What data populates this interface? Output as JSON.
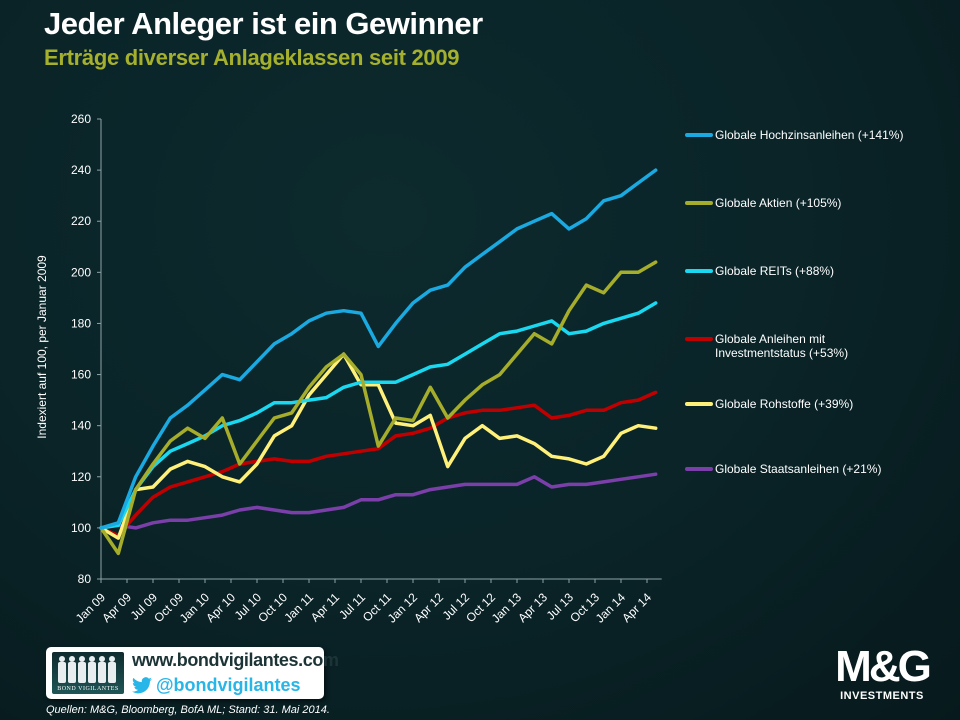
{
  "header": {
    "title": "Jeder Anleger ist ein Gewinner",
    "subtitle": "Erträge diverser Anlageklassen seit 2009"
  },
  "chart_data": {
    "type": "line",
    "ylabel": "Indexiert auf 100, per Januar 2009",
    "ylim": [
      80,
      260
    ],
    "yticks": [
      80,
      100,
      120,
      140,
      160,
      180,
      200,
      220,
      240,
      260
    ],
    "x_unit": "months since Jan 2009",
    "xlim": [
      0,
      64
    ],
    "xticks": [
      {
        "m": 0,
        "label": "Jan 09"
      },
      {
        "m": 3,
        "label": "Apr 09"
      },
      {
        "m": 6,
        "label": "Jul 09"
      },
      {
        "m": 9,
        "label": "Oct 09"
      },
      {
        "m": 12,
        "label": "Jan 10"
      },
      {
        "m": 15,
        "label": "Apr 10"
      },
      {
        "m": 18,
        "label": "Jul 10"
      },
      {
        "m": 21,
        "label": "Oct 10"
      },
      {
        "m": 24,
        "label": "Jan 11"
      },
      {
        "m": 27,
        "label": "Apr 11"
      },
      {
        "m": 30,
        "label": "Jul 11"
      },
      {
        "m": 33,
        "label": "Oct 11"
      },
      {
        "m": 36,
        "label": "Jan 12"
      },
      {
        "m": 39,
        "label": "Apr 12"
      },
      {
        "m": 42,
        "label": "Jul 12"
      },
      {
        "m": 45,
        "label": "Oct 12"
      },
      {
        "m": 48,
        "label": "Jan 13"
      },
      {
        "m": 51,
        "label": "Apr 13"
      },
      {
        "m": 54,
        "label": "Jul 13"
      },
      {
        "m": 57,
        "label": "Oct 13"
      },
      {
        "m": 60,
        "label": "Jan 14"
      },
      {
        "m": 63,
        "label": "Apr 14"
      }
    ],
    "x": [
      0,
      2,
      4,
      6,
      8,
      10,
      12,
      14,
      16,
      18,
      20,
      22,
      24,
      26,
      28,
      30,
      32,
      34,
      36,
      38,
      40,
      42,
      44,
      46,
      48,
      50,
      52,
      54,
      56,
      58,
      60,
      62,
      64
    ],
    "series": [
      {
        "name": "Globale Hochzinsanleihen (+141%)",
        "color": "#1aa9e0",
        "values": [
          100,
          102,
          120,
          132,
          143,
          148,
          154,
          160,
          158,
          165,
          172,
          176,
          181,
          184,
          185,
          184,
          171,
          180,
          188,
          193,
          195,
          202,
          207,
          212,
          217,
          220,
          223,
          217,
          221,
          228,
          230,
          235,
          240
        ]
      },
      {
        "name": "Globale Aktien (+105%)",
        "color": "#a6ad2a",
        "values": [
          100,
          90,
          115,
          125,
          134,
          139,
          135,
          143,
          125,
          134,
          143,
          145,
          155,
          163,
          168,
          160,
          132,
          143,
          142,
          155,
          143,
          150,
          156,
          160,
          168,
          176,
          172,
          185,
          195,
          192,
          200,
          200,
          204
        ]
      },
      {
        "name": "Globale REITs (+88%)",
        "color": "#1ad8f0",
        "values": [
          100,
          101,
          115,
          124,
          130,
          133,
          136,
          140,
          142,
          145,
          149,
          149,
          150,
          151,
          155,
          157,
          157,
          157,
          160,
          163,
          164,
          168,
          172,
          176,
          177,
          179,
          181,
          176,
          177,
          180,
          182,
          184,
          188
        ]
      },
      {
        "name": "Globale Anleihen mit",
        "name2": "Investmentstatus (+53%)",
        "color": "#c00000",
        "values": [
          100,
          97,
          105,
          112,
          116,
          118,
          120,
          122,
          125,
          126,
          127,
          126,
          126,
          128,
          129,
          130,
          131,
          136,
          137,
          139,
          143,
          145,
          146,
          146,
          147,
          148,
          143,
          144,
          146,
          146,
          149,
          150,
          153
        ]
      },
      {
        "name": "Globale Rohstoffe (+39%)",
        "color": "#fff07a",
        "values": [
          100,
          96,
          115,
          116,
          123,
          126,
          124,
          120,
          118,
          125,
          136,
          140,
          152,
          160,
          168,
          156,
          156,
          141,
          140,
          144,
          124,
          135,
          140,
          135,
          136,
          133,
          128,
          127,
          125,
          128,
          137,
          140,
          139
        ]
      },
      {
        "name": "Globale Staatsanleihen (+21%)",
        "color": "#7a3fa8",
        "values": [
          100,
          101,
          100,
          102,
          103,
          103,
          104,
          105,
          107,
          108,
          107,
          106,
          106,
          107,
          108,
          111,
          111,
          113,
          113,
          115,
          116,
          117,
          117,
          117,
          117,
          120,
          116,
          117,
          117,
          118,
          119,
          120,
          121
        ]
      }
    ],
    "legend": "right"
  },
  "footer": {
    "url": "www.bondvigilantes.com",
    "twitter": "@bondvigilantes",
    "bv_logo_text": "BOND VIGILANTES",
    "source": "Quellen: M&G, Bloomberg, BofA ML; Stand: 31. Mai 2014.",
    "mg_logo": "M&G",
    "mg_sub": "INVESTMENTS"
  }
}
